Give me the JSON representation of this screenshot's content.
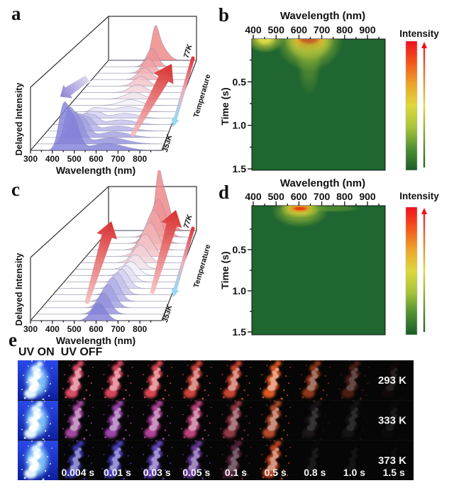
{
  "figure": {
    "panel_labels": {
      "a": "a",
      "b": "b",
      "c": "c",
      "d": "d",
      "e": "e"
    }
  },
  "chart_data": [
    {
      "panel": "a",
      "type": "area",
      "variant": "3d_waterfall",
      "xlabel": "Wavelength (nm)",
      "x_ticks": [
        300,
        400,
        500,
        600,
        700,
        800
      ],
      "x_range": [
        300,
        900
      ],
      "ylabel": "Delayed Intensity",
      "z_axis": {
        "label": "Temperature",
        "near": "353K",
        "far": "77K"
      },
      "series_colors": {
        "front": "#8280d8",
        "middle": "#f3f1f9",
        "back": "#ee8585"
      },
      "curves": [
        {
          "peaks": [
            [
              450,
              22,
              0.93
            ],
            [
              497,
              26,
              0.7
            ],
            [
              650,
              75,
              0.16
            ]
          ]
        },
        {
          "peaks": [
            [
              452,
              22,
              0.72
            ],
            [
              500,
              26,
              0.55
            ],
            [
              650,
              75,
              0.14
            ]
          ]
        },
        {
          "peaks": [
            [
              454,
              22,
              0.5
            ],
            [
              503,
              26,
              0.4
            ],
            [
              648,
              72,
              0.13
            ]
          ]
        },
        {
          "peaks": [
            [
              456,
              22,
              0.34
            ],
            [
              506,
              26,
              0.28
            ],
            [
              648,
              70,
              0.12
            ]
          ]
        },
        {
          "peaks": [
            [
              458,
              22,
              0.22
            ],
            [
              508,
              26,
              0.19
            ],
            [
              645,
              70,
              0.11
            ]
          ]
        },
        {
          "peaks": [
            [
              460,
              22,
              0.14
            ],
            [
              510,
              26,
              0.12
            ],
            [
              645,
              65,
              0.11
            ]
          ]
        },
        {
          "peaks": [
            [
              462,
              22,
              0.09
            ],
            [
              512,
              26,
              0.07
            ],
            [
              640,
              60,
              0.12
            ]
          ]
        },
        {
          "peaks": [
            [
              635,
              55,
              0.13
            ]
          ]
        },
        {
          "peaks": [
            [
              632,
              50,
              0.15
            ]
          ]
        },
        {
          "peaks": [
            [
              630,
              46,
              0.18
            ]
          ]
        },
        {
          "peaks": [
            [
              628,
              42,
              0.22
            ]
          ]
        },
        {
          "peaks": [
            [
              627,
              40,
              0.27
            ]
          ]
        },
        {
          "peaks": [
            [
              626,
              38,
              0.33
            ]
          ]
        },
        {
          "peaks": [
            [
              624,
              36,
              0.42
            ]
          ]
        },
        {
          "peaks": [
            [
              618,
              24,
              0.55
            ],
            [
              655,
              45,
              0.33
            ]
          ]
        }
      ],
      "annotations": [
        {
          "name": "blue-shift-arrow",
          "from": [
            124,
            110
          ],
          "to": [
            84,
            137
          ],
          "tail_w": 5.5,
          "neck_w": 7.5,
          "head_w": 13,
          "head_l": 15,
          "color_from": "#d8d2f0",
          "color_to": "#8b7ed2",
          "stroke": "#ffffff"
        },
        {
          "name": "red-growth-arrow",
          "from": [
            186,
            192
          ],
          "to": [
            242,
            90
          ],
          "tail_w": 3,
          "neck_w": 8,
          "head_w": 16,
          "head_l": 24,
          "color_from": "#f4bcbc",
          "color_to": "#d92f2f"
        }
      ]
    },
    {
      "panel": "b",
      "type": "heatmap",
      "xlabel": "Wavelength (nm)",
      "x_ticks": [
        400,
        500,
        600,
        700,
        800,
        900
      ],
      "ylabel": "Time (s)",
      "y_ticks": [
        "0.5",
        "1.0",
        "1.5"
      ],
      "y_range": [
        0,
        1.5
      ],
      "colorbar_label": "Intensity",
      "background": "#1f6630",
      "colormap": [
        "#1a5c28",
        "#4f8f33",
        "#a8c43a",
        "#ddd83b",
        "#eda42c",
        "#f3571b",
        "#ee1020"
      ],
      "hotspots": [
        {
          "wavelength": 452,
          "time": 0,
          "layers": [
            {
              "color": "#c6cd3a",
              "rx_nm": 85,
              "ry_t": 0.17,
              "opacity": 0.8
            },
            {
              "color": "#e9e34a",
              "rx_nm": 48,
              "ry_t": 0.09,
              "opacity": 0.95
            }
          ]
        },
        {
          "wavelength": 645,
          "time": 0,
          "layers": [
            {
              "color": "#a9c238",
              "rx_nm": 150,
              "ry_t": 0.38,
              "opacity": 0.8
            },
            {
              "color": "#d8d23c",
              "rx_nm": 110,
              "ry_t": 0.26,
              "opacity": 0.9
            },
            {
              "color": "#f29b27",
              "rx_nm": 78,
              "ry_t": 0.15,
              "opacity": 0.95
            },
            {
              "color": "#e51a18",
              "rx_nm": 50,
              "ry_t": 0.08,
              "opacity": 1
            },
            {
              "color": "#8eb334",
              "rx_nm": 58,
              "ry_t": 0.5,
              "dy_t": 0.16,
              "opacity": 0.45
            }
          ]
        }
      ]
    },
    {
      "panel": "c",
      "type": "area",
      "variant": "3d_waterfall",
      "xlabel": "Wavelength (nm)",
      "x_ticks": [
        300,
        400,
        500,
        600,
        700,
        800
      ],
      "x_range": [
        300,
        900
      ],
      "ylabel": "Delayed Intensity",
      "z_axis": {
        "label": "Temperature",
        "near": "353K",
        "far": "77K"
      },
      "series_colors": {
        "front": "#8280d8",
        "middle": "#f3f1f9",
        "back": "#ee8585"
      },
      "curves": [
        {
          "peaks": [
            [
              612,
              32,
              0.4
            ]
          ]
        },
        {
          "peaks": [
            [
              615,
              33,
              0.48
            ]
          ]
        },
        {
          "peaks": [
            [
              618,
              34,
              0.53
            ]
          ]
        },
        {
          "peaks": [
            [
              621,
              35,
              0.54
            ]
          ]
        },
        {
          "peaks": [
            [
              624,
              36,
              0.5
            ]
          ]
        },
        {
          "peaks": [
            [
              627,
              37,
              0.44
            ]
          ]
        },
        {
          "peaks": [
            [
              631,
              38,
              0.37
            ]
          ]
        },
        {
          "peaks": [
            [
              635,
              40,
              0.32
            ]
          ]
        },
        {
          "peaks": [
            [
              640,
              42,
              0.33
            ]
          ]
        },
        {
          "peaks": [
            [
              646,
              44,
              0.4
            ]
          ]
        },
        {
          "peaks": [
            [
              652,
              46,
              0.5
            ]
          ]
        },
        {
          "peaks": [
            [
              657,
              47,
              0.62
            ]
          ]
        },
        {
          "peaks": [
            [
              661,
              48,
              0.75
            ]
          ]
        },
        {
          "peaks": [
            [
              664,
              48,
              0.86
            ]
          ]
        },
        {
          "peaks": [
            [
              640,
              18,
              0.6
            ],
            [
              668,
              45,
              0.95
            ]
          ]
        }
      ],
      "annotations": [
        {
          "name": "red-growth-arrow-left",
          "from": [
            122,
            188
          ],
          "to": [
            157,
            72
          ],
          "tail_w": 3,
          "neck_w": 7.5,
          "head_w": 15,
          "head_l": 22,
          "color_from": "#f4bcbc",
          "color_to": "#d92f2f"
        },
        {
          "name": "red-growth-arrow-right",
          "from": [
            214,
            174
          ],
          "to": [
            248,
            56
          ],
          "tail_w": 3,
          "neck_w": 7.5,
          "head_w": 15,
          "head_l": 22,
          "color_from": "#f4bcbc",
          "color_to": "#d92f2f"
        }
      ]
    },
    {
      "panel": "d",
      "type": "heatmap",
      "xlabel": "Wavelength (nm)",
      "x_ticks": [
        400,
        500,
        600,
        700,
        800,
        900
      ],
      "ylabel": "Time (s)",
      "y_ticks": [
        "0.5",
        "1.0",
        "1.5"
      ],
      "y_range": [
        0,
        1.5
      ],
      "colorbar_label": "Intensity",
      "background": "#1f6630",
      "colormap": [
        "#1a5c28",
        "#4f8f33",
        "#a8c43a",
        "#ddd83b",
        "#eda42c",
        "#f3571b",
        "#ee1020"
      ],
      "hotspots": [
        {
          "wavelength": 605,
          "time": 0,
          "layers": [
            {
              "color": "#9cba36",
              "rx_nm": 125,
              "ry_t": 0.2,
              "dy_t": 0.03,
              "opacity": 0.75
            },
            {
              "color": "#d8cf3a",
              "rx_nm": 88,
              "ry_t": 0.12,
              "opacity": 0.9
            },
            {
              "color": "#ef8a1e",
              "rx_nm": 55,
              "ry_t": 0.055,
              "opacity": 0.95
            },
            {
              "color": "#e8380f",
              "rx_nm": 34,
              "ry_t": 0.028,
              "opacity": 1
            }
          ]
        },
        {
          "wavelength": 745,
          "time": 0,
          "layers": [
            {
              "color": "#7fae35",
              "rx_nm": 130,
              "ry_t": 0.045,
              "opacity": 0.5
            }
          ]
        }
      ]
    }
  ],
  "panel_e": {
    "label": "e",
    "uv_on_label": "UV ON",
    "uv_off_label": "UV OFF",
    "times": [
      "0.004 s",
      "0.01 s",
      "0.03 s",
      "0.05 s",
      "0.1 s",
      "0.5 s",
      "0.8 s",
      "1.0 s",
      "1.5 s"
    ],
    "rows": [
      {
        "temperature": "293 K",
        "cells": [
          {
            "c": "#e8506e",
            "o": 0.95
          },
          {
            "c": "#e44a62",
            "o": 0.95
          },
          {
            "c": "#e64a55",
            "o": 0.95
          },
          {
            "c": "#e2493f",
            "o": 0.9
          },
          {
            "c": "#de4a36",
            "o": 0.9
          },
          {
            "c": "#e85c22",
            "o": 0.95
          },
          {
            "c": "#c84a20",
            "o": 0.7
          },
          {
            "c": "#a03c28",
            "o": 0.45
          },
          {
            "c": "#401812",
            "o": 0.2
          }
        ]
      },
      {
        "temperature": "333 K",
        "cells": [
          {
            "c": "#b44fb0",
            "o": 0.9
          },
          {
            "c": "#ab4cc0",
            "o": 0.9
          },
          {
            "c": "#c248a8",
            "o": 0.9
          },
          {
            "c": "#d04888",
            "o": 0.9
          },
          {
            "c": "#c04858",
            "o": 0.75
          },
          {
            "c": "#d25530",
            "o": 0.85
          },
          {
            "c": "#4a3c44",
            "o": 0.3
          },
          {
            "c": "#423a42",
            "o": 0.25
          },
          {
            "c": "#2a2428",
            "o": 0.15
          }
        ]
      },
      {
        "temperature": "373 K",
        "cells": [
          {
            "c": "#3f3dc2",
            "o": 0.9
          },
          {
            "c": "#5346cf",
            "o": 0.9
          },
          {
            "c": "#6f4cd0",
            "o": 0.9
          },
          {
            "c": "#7a44b8",
            "o": 0.85
          },
          {
            "c": "#8c3a64",
            "o": 0.6
          },
          {
            "c": "#d44c20",
            "o": 0.9
          },
          {
            "c": "#241418",
            "o": 0.15
          },
          {
            "c": "#1a0f12",
            "o": 0.1
          },
          {
            "c": "#0f0a0c",
            "o": 0.06
          }
        ]
      }
    ],
    "uv_on": {
      "bg_top": "#2a49e8",
      "bg_bottom": "#0d1f9e",
      "powder": "#e2f4ff",
      "glow": "#8fd8ff"
    }
  }
}
